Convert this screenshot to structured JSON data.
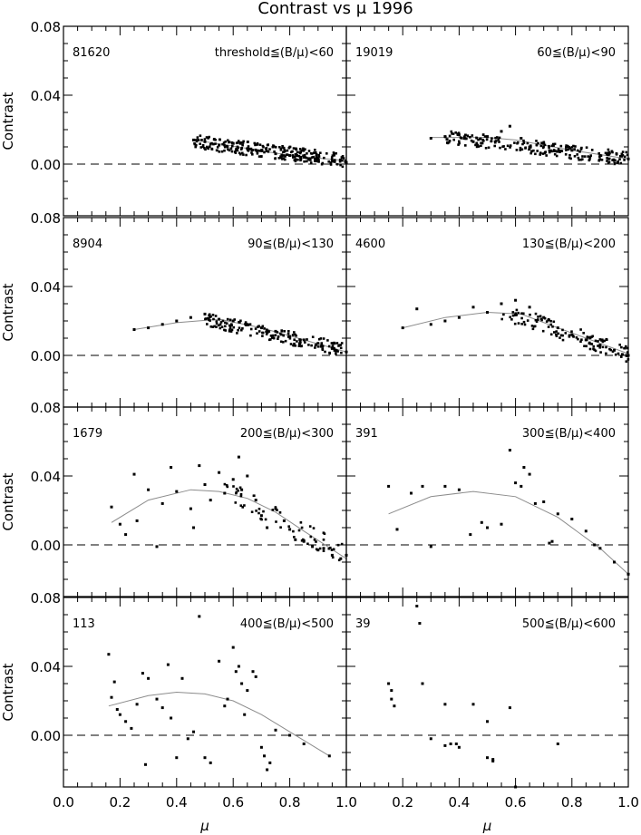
{
  "title": "Contrast vs μ 1996",
  "colors": {
    "ink": "#000000",
    "fit": "#8c8c8c",
    "background": "#ffffff"
  },
  "chart_data": [
    {
      "type": "scatter",
      "row": 0,
      "col": 0,
      "count_label": "81620",
      "range_label": "threshold≦(B/μ)<60",
      "xlabel": "",
      "ylabel": "Contrast",
      "xlim": [
        0,
        1
      ],
      "ylim": [
        -0.03,
        0.08
      ],
      "fit": {
        "x_start": 0.46,
        "x_end": 1.0,
        "points": [
          [
            0.46,
            0.014
          ],
          [
            0.6,
            0.0105
          ],
          [
            0.8,
            0.005
          ],
          [
            1.0,
            0.002
          ]
        ]
      },
      "points": [
        [
          0.46,
          0.014
        ],
        [
          0.5,
          0.013
        ],
        [
          0.55,
          0.011
        ],
        [
          0.6,
          0.012
        ],
        [
          0.65,
          0.009
        ],
        [
          0.7,
          0.008
        ],
        [
          0.75,
          0.006
        ],
        [
          0.8,
          0.005
        ],
        [
          0.85,
          0.004
        ],
        [
          0.9,
          0.003
        ],
        [
          0.95,
          0.002
        ],
        [
          1.0,
          0.001
        ]
      ],
      "band": {
        "x_start": 0.46,
        "x_end": 1.0,
        "center_start": 0.013,
        "center_end": 0.002,
        "halfwidth": 0.004,
        "density": 260
      }
    },
    {
      "type": "scatter",
      "row": 0,
      "col": 1,
      "count_label": "19019",
      "range_label": "60≦(B/μ)<90",
      "xlabel": "",
      "ylabel": "",
      "xlim": [
        0,
        1
      ],
      "ylim": [
        -0.03,
        0.08
      ],
      "fit": {
        "x_start": 0.3,
        "x_end": 1.0,
        "points": [
          [
            0.3,
            0.0155
          ],
          [
            0.5,
            0.0155
          ],
          [
            0.6,
            0.014
          ],
          [
            0.8,
            0.008
          ],
          [
            1.0,
            0.003
          ]
        ]
      },
      "points": [
        [
          0.3,
          0.015
        ],
        [
          0.35,
          0.016
        ],
        [
          0.4,
          0.017
        ],
        [
          0.45,
          0.013
        ],
        [
          0.5,
          0.016
        ],
        [
          0.55,
          0.019
        ],
        [
          0.58,
          0.022
        ],
        [
          0.62,
          0.015
        ],
        [
          0.7,
          0.012
        ],
        [
          0.8,
          0.008
        ],
        [
          0.9,
          0.005
        ],
        [
          1.0,
          0.003
        ]
      ],
      "band": {
        "x_start": 0.35,
        "x_end": 1.0,
        "center_start": 0.016,
        "center_end": 0.003,
        "halfwidth": 0.004,
        "density": 220
      }
    },
    {
      "type": "scatter",
      "row": 1,
      "col": 0,
      "count_label": "8904",
      "range_label": "90≦(B/μ)<130",
      "xlabel": "",
      "ylabel": "Contrast",
      "xlim": [
        0,
        1
      ],
      "ylim": [
        -0.03,
        0.08
      ],
      "fit": {
        "x_start": 0.25,
        "x_end": 1.0,
        "points": [
          [
            0.25,
            0.015
          ],
          [
            0.4,
            0.019
          ],
          [
            0.55,
            0.021
          ],
          [
            0.7,
            0.016
          ],
          [
            0.85,
            0.009
          ],
          [
            1.0,
            0.002
          ]
        ]
      },
      "points": [
        [
          0.25,
          0.015
        ],
        [
          0.3,
          0.016
        ],
        [
          0.35,
          0.018
        ],
        [
          0.4,
          0.02
        ],
        [
          0.45,
          0.022
        ],
        [
          0.5,
          0.024
        ],
        [
          0.55,
          0.021
        ],
        [
          0.6,
          0.02
        ],
        [
          0.65,
          0.018
        ],
        [
          0.7,
          0.016
        ],
        [
          0.75,
          0.014
        ],
        [
          0.8,
          0.011
        ],
        [
          0.85,
          0.009
        ],
        [
          0.9,
          0.007
        ],
        [
          0.95,
          0.004
        ],
        [
          1.0,
          0.002
        ]
      ],
      "band": {
        "x_start": 0.5,
        "x_end": 1.0,
        "center_start": 0.021,
        "center_end": 0.003,
        "halfwidth": 0.004,
        "density": 170
      }
    },
    {
      "type": "scatter",
      "row": 1,
      "col": 1,
      "count_label": "4600",
      "range_label": "130≦(B/μ)<200",
      "xlabel": "",
      "ylabel": "",
      "xlim": [
        0,
        1
      ],
      "ylim": [
        -0.03,
        0.08
      ],
      "fit": {
        "x_start": 0.2,
        "x_end": 1.0,
        "points": [
          [
            0.2,
            0.016
          ],
          [
            0.35,
            0.022
          ],
          [
            0.5,
            0.025
          ],
          [
            0.62,
            0.024
          ],
          [
            0.75,
            0.016
          ],
          [
            0.9,
            0.007
          ],
          [
            1.0,
            0.001
          ]
        ]
      },
      "points": [
        [
          0.2,
          0.016
        ],
        [
          0.25,
          0.027
        ],
        [
          0.3,
          0.018
        ],
        [
          0.35,
          0.02
        ],
        [
          0.4,
          0.022
        ],
        [
          0.45,
          0.028
        ],
        [
          0.5,
          0.025
        ],
        [
          0.55,
          0.03
        ],
        [
          0.6,
          0.032
        ],
        [
          0.65,
          0.028
        ],
        [
          0.7,
          0.022
        ],
        [
          0.75,
          0.016
        ],
        [
          0.8,
          0.012
        ],
        [
          0.85,
          0.009
        ],
        [
          0.9,
          0.006
        ],
        [
          0.95,
          0.003
        ],
        [
          1.0,
          0.0
        ]
      ],
      "band": {
        "x_start": 0.55,
        "x_end": 1.0,
        "center_start": 0.026,
        "center_end": 0.001,
        "halfwidth": 0.005,
        "density": 120
      }
    },
    {
      "type": "scatter",
      "row": 2,
      "col": 0,
      "count_label": "1679",
      "range_label": "200≦(B/μ)<300",
      "xlabel": "",
      "ylabel": "Contrast",
      "xlim": [
        0,
        1
      ],
      "ylim": [
        -0.03,
        0.08
      ],
      "fit": {
        "x_start": 0.17,
        "x_end": 1.0,
        "points": [
          [
            0.17,
            0.013
          ],
          [
            0.3,
            0.026
          ],
          [
            0.45,
            0.032
          ],
          [
            0.55,
            0.031
          ],
          [
            0.65,
            0.027
          ],
          [
            0.75,
            0.019
          ],
          [
            0.85,
            0.008
          ],
          [
            1.0,
            -0.008
          ]
        ]
      },
      "points": [
        [
          0.17,
          0.022
        ],
        [
          0.2,
          0.012
        ],
        [
          0.22,
          0.006
        ],
        [
          0.25,
          0.041
        ],
        [
          0.26,
          0.014
        ],
        [
          0.3,
          0.032
        ],
        [
          0.33,
          -0.001
        ],
        [
          0.35,
          0.024
        ],
        [
          0.38,
          0.045
        ],
        [
          0.4,
          0.031
        ],
        [
          0.45,
          0.021
        ],
        [
          0.46,
          0.01
        ],
        [
          0.48,
          0.046
        ],
        [
          0.5,
          0.035
        ],
        [
          0.52,
          0.026
        ],
        [
          0.55,
          0.042
        ],
        [
          0.57,
          0.03
        ],
        [
          0.6,
          0.038
        ],
        [
          0.62,
          0.051
        ],
        [
          0.63,
          0.032
        ],
        [
          0.65,
          0.04
        ],
        [
          0.68,
          0.026
        ],
        [
          0.7,
          0.017
        ],
        [
          0.72,
          0.01
        ],
        [
          0.75,
          0.021
        ],
        [
          0.78,
          0.014
        ],
        [
          0.8,
          0.009
        ],
        [
          0.82,
          0.003
        ],
        [
          0.85,
          0.002
        ],
        [
          0.88,
          -0.001
        ],
        [
          0.9,
          -0.003
        ],
        [
          0.92,
          -0.002
        ],
        [
          0.95,
          -0.006
        ],
        [
          0.98,
          -0.008
        ],
        [
          1.0,
          -0.006
        ]
      ],
      "band": {
        "x_start": 0.55,
        "x_end": 1.0,
        "center_start": 0.034,
        "center_end": -0.006,
        "halfwidth": 0.006,
        "density": 60
      }
    },
    {
      "type": "scatter",
      "row": 2,
      "col": 1,
      "count_label": "391",
      "range_label": "300≦(B/μ)<400",
      "xlabel": "",
      "ylabel": "",
      "xlim": [
        0,
        1
      ],
      "ylim": [
        -0.03,
        0.08
      ],
      "fit": {
        "x_start": 0.15,
        "x_end": 1.0,
        "points": [
          [
            0.15,
            0.018
          ],
          [
            0.3,
            0.028
          ],
          [
            0.45,
            0.031
          ],
          [
            0.6,
            0.028
          ],
          [
            0.75,
            0.016
          ],
          [
            0.9,
            -0.002
          ],
          [
            1.0,
            -0.017
          ]
        ]
      },
      "points": [
        [
          0.15,
          0.034
        ],
        [
          0.18,
          0.009
        ],
        [
          0.23,
          0.03
        ],
        [
          0.27,
          0.034
        ],
        [
          0.3,
          -0.001
        ],
        [
          0.35,
          0.034
        ],
        [
          0.4,
          0.032
        ],
        [
          0.44,
          0.006
        ],
        [
          0.48,
          0.013
        ],
        [
          0.5,
          0.01
        ],
        [
          0.55,
          0.012
        ],
        [
          0.58,
          0.055
        ],
        [
          0.6,
          0.036
        ],
        [
          0.62,
          0.034
        ],
        [
          0.63,
          0.045
        ],
        [
          0.65,
          0.041
        ],
        [
          0.67,
          0.024
        ],
        [
          0.7,
          0.025
        ],
        [
          0.72,
          0.001
        ],
        [
          0.73,
          0.002
        ],
        [
          0.75,
          0.018
        ],
        [
          0.8,
          0.015
        ],
        [
          0.85,
          0.008
        ],
        [
          0.88,
          0.0
        ],
        [
          0.9,
          -0.002
        ],
        [
          0.95,
          -0.01
        ],
        [
          1.0,
          -0.017
        ]
      ]
    },
    {
      "type": "scatter",
      "row": 3,
      "col": 0,
      "count_label": "113",
      "range_label": "400≦(B/μ)<500",
      "xlabel": "μ",
      "ylabel": "Contrast",
      "xlim": [
        0,
        1
      ],
      "ylim": [
        -0.03,
        0.08
      ],
      "fit": {
        "x_start": 0.16,
        "x_end": 0.94,
        "points": [
          [
            0.16,
            0.017
          ],
          [
            0.3,
            0.023
          ],
          [
            0.4,
            0.025
          ],
          [
            0.5,
            0.024
          ],
          [
            0.6,
            0.02
          ],
          [
            0.7,
            0.012
          ],
          [
            0.8,
            0.002
          ],
          [
            0.94,
            -0.012
          ]
        ]
      },
      "points": [
        [
          0.16,
          0.047
        ],
        [
          0.17,
          0.022
        ],
        [
          0.18,
          0.031
        ],
        [
          0.19,
          0.015
        ],
        [
          0.2,
          0.012
        ],
        [
          0.22,
          0.008
        ],
        [
          0.24,
          0.004
        ],
        [
          0.26,
          0.018
        ],
        [
          0.28,
          0.036
        ],
        [
          0.29,
          -0.017
        ],
        [
          0.3,
          0.033
        ],
        [
          0.33,
          0.021
        ],
        [
          0.35,
          0.016
        ],
        [
          0.37,
          0.041
        ],
        [
          0.38,
          0.01
        ],
        [
          0.4,
          -0.013
        ],
        [
          0.42,
          0.033
        ],
        [
          0.44,
          -0.002
        ],
        [
          0.46,
          0.002
        ],
        [
          0.48,
          0.069
        ],
        [
          0.5,
          -0.013
        ],
        [
          0.52,
          -0.016
        ],
        [
          0.55,
          0.043
        ],
        [
          0.57,
          0.017
        ],
        [
          0.58,
          0.021
        ],
        [
          0.6,
          0.051
        ],
        [
          0.61,
          0.037
        ],
        [
          0.62,
          0.04
        ],
        [
          0.63,
          0.03
        ],
        [
          0.64,
          0.012
        ],
        [
          0.65,
          0.026
        ],
        [
          0.67,
          0.037
        ],
        [
          0.68,
          0.034
        ],
        [
          0.7,
          -0.007
        ],
        [
          0.71,
          -0.012
        ],
        [
          0.72,
          -0.02
        ],
        [
          0.73,
          -0.016
        ],
        [
          0.75,
          0.003
        ],
        [
          0.8,
          0.0
        ],
        [
          0.85,
          -0.005
        ],
        [
          0.94,
          -0.012
        ]
      ]
    },
    {
      "type": "scatter",
      "row": 3,
      "col": 1,
      "count_label": "39",
      "range_label": "500≦(B/μ)<600",
      "xlabel": "μ",
      "ylabel": "",
      "xlim": [
        0,
        1
      ],
      "ylim": [
        -0.03,
        0.08
      ],
      "points": [
        [
          0.15,
          0.03
        ],
        [
          0.16,
          0.026
        ],
        [
          0.16,
          0.021
        ],
        [
          0.17,
          0.017
        ],
        [
          0.25,
          0.075
        ],
        [
          0.26,
          0.065
        ],
        [
          0.27,
          0.03
        ],
        [
          0.3,
          -0.002
        ],
        [
          0.35,
          0.018
        ],
        [
          0.37,
          -0.005
        ],
        [
          0.39,
          -0.005
        ],
        [
          0.4,
          -0.007
        ],
        [
          0.45,
          0.018
        ],
        [
          0.5,
          0.008
        ],
        [
          0.52,
          -0.014
        ],
        [
          0.5,
          -0.013
        ],
        [
          0.58,
          0.016
        ],
        [
          0.6,
          -0.03
        ],
        [
          0.75,
          -0.005
        ],
        [
          0.35,
          -0.006
        ],
        [
          0.52,
          -0.015
        ]
      ]
    }
  ],
  "x_ticks": [
    "0.0",
    "0.2",
    "0.4",
    "0.6",
    "0.8",
    "1.0"
  ],
  "y_ticks": [
    "0.08",
    "0.04",
    "0.00"
  ]
}
